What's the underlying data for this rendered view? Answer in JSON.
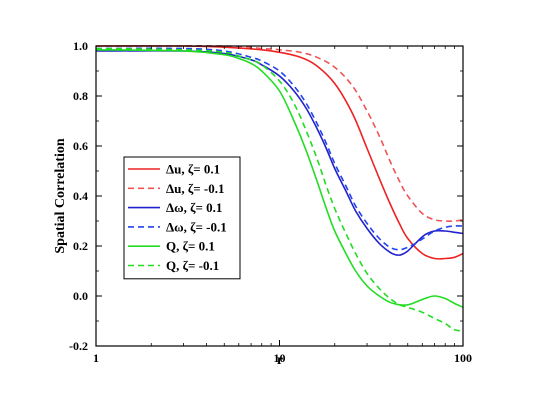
{
  "chart_data": {
    "type": "line",
    "xlabel": "r",
    "ylabel": "Spatial Correlation",
    "xscale": "log",
    "xlim": [
      1,
      100
    ],
    "ylim": [
      -0.2,
      1.0
    ],
    "x_ticks": [
      {
        "value": 1,
        "label": "1"
      },
      {
        "value": 10,
        "label": "10"
      },
      {
        "value": 100,
        "label": "100"
      }
    ],
    "y_ticks": [
      {
        "value": -0.2,
        "label": "-0.2"
      },
      {
        "value": 0.0,
        "label": "0.0"
      },
      {
        "value": 0.2,
        "label": "0.2"
      },
      {
        "value": 0.4,
        "label": "0.4"
      },
      {
        "value": 0.6,
        "label": "0.6"
      },
      {
        "value": 0.8,
        "label": "0.8"
      },
      {
        "value": 1.0,
        "label": "1.0"
      }
    ],
    "grid": false,
    "legend_position": "center-left",
    "series": [
      {
        "name": "Δu, ζ= 0.1",
        "color": "#ee2222",
        "dash": "solid",
        "points": [
          [
            1,
            1.0
          ],
          [
            3,
            1.0
          ],
          [
            5,
            0.995
          ],
          [
            8,
            0.985
          ],
          [
            10,
            0.975
          ],
          [
            13,
            0.955
          ],
          [
            16,
            0.92
          ],
          [
            20,
            0.85
          ],
          [
            25,
            0.73
          ],
          [
            30,
            0.59
          ],
          [
            35,
            0.47
          ],
          [
            40,
            0.37
          ],
          [
            45,
            0.29
          ],
          [
            50,
            0.23
          ],
          [
            60,
            0.17
          ],
          [
            70,
            0.15
          ],
          [
            80,
            0.15
          ],
          [
            90,
            0.155
          ],
          [
            100,
            0.17
          ]
        ]
      },
      {
        "name": "Δu, ζ= -0.1",
        "color": "#ee5555",
        "dash": "dashed",
        "points": [
          [
            1,
            1.0
          ],
          [
            5,
            1.0
          ],
          [
            8,
            0.99
          ],
          [
            10,
            0.985
          ],
          [
            13,
            0.975
          ],
          [
            16,
            0.955
          ],
          [
            20,
            0.915
          ],
          [
            25,
            0.84
          ],
          [
            30,
            0.74
          ],
          [
            35,
            0.64
          ],
          [
            40,
            0.54
          ],
          [
            45,
            0.46
          ],
          [
            50,
            0.4
          ],
          [
            60,
            0.33
          ],
          [
            70,
            0.305
          ],
          [
            80,
            0.3
          ],
          [
            90,
            0.3
          ],
          [
            100,
            0.305
          ]
        ]
      },
      {
        "name": "Δω, ζ= 0.1",
        "color": "#2222cc",
        "dash": "solid",
        "points": [
          [
            1,
            0.98
          ],
          [
            3,
            0.98
          ],
          [
            5,
            0.97
          ],
          [
            7,
            0.945
          ],
          [
            8,
            0.925
          ],
          [
            10,
            0.88
          ],
          [
            12,
            0.82
          ],
          [
            14,
            0.75
          ],
          [
            16,
            0.67
          ],
          [
            18,
            0.59
          ],
          [
            20,
            0.51
          ],
          [
            23,
            0.42
          ],
          [
            26,
            0.34
          ],
          [
            30,
            0.27
          ],
          [
            35,
            0.21
          ],
          [
            40,
            0.175
          ],
          [
            43,
            0.165
          ],
          [
            46,
            0.165
          ],
          [
            50,
            0.18
          ],
          [
            55,
            0.21
          ],
          [
            62,
            0.245
          ],
          [
            70,
            0.26
          ],
          [
            80,
            0.26
          ],
          [
            90,
            0.255
          ],
          [
            100,
            0.25
          ]
        ]
      },
      {
        "name": "Δω, ζ= -0.1",
        "color": "#2244ee",
        "dash": "dashed",
        "points": [
          [
            1,
            0.99
          ],
          [
            3,
            0.99
          ],
          [
            5,
            0.98
          ],
          [
            7,
            0.955
          ],
          [
            8,
            0.94
          ],
          [
            10,
            0.9
          ],
          [
            12,
            0.84
          ],
          [
            14,
            0.77
          ],
          [
            16,
            0.69
          ],
          [
            18,
            0.61
          ],
          [
            20,
            0.53
          ],
          [
            23,
            0.44
          ],
          [
            26,
            0.36
          ],
          [
            30,
            0.29
          ],
          [
            35,
            0.23
          ],
          [
            40,
            0.195
          ],
          [
            45,
            0.185
          ],
          [
            50,
            0.195
          ],
          [
            55,
            0.21
          ],
          [
            62,
            0.235
          ],
          [
            70,
            0.26
          ],
          [
            80,
            0.275
          ],
          [
            90,
            0.28
          ],
          [
            100,
            0.28
          ]
        ]
      },
      {
        "name": "Q, ζ= 0.1",
        "color": "#22dd22",
        "dash": "solid",
        "points": [
          [
            1,
            0.985
          ],
          [
            3,
            0.98
          ],
          [
            5,
            0.965
          ],
          [
            6,
            0.95
          ],
          [
            7,
            0.93
          ],
          [
            8,
            0.9
          ],
          [
            10,
            0.82
          ],
          [
            12,
            0.7
          ],
          [
            14,
            0.58
          ],
          [
            16,
            0.46
          ],
          [
            18,
            0.35
          ],
          [
            20,
            0.26
          ],
          [
            23,
            0.17
          ],
          [
            26,
            0.1
          ],
          [
            30,
            0.04
          ],
          [
            35,
            0.0
          ],
          [
            40,
            -0.025
          ],
          [
            45,
            -0.035
          ],
          [
            50,
            -0.035
          ],
          [
            55,
            -0.025
          ],
          [
            62,
            -0.01
          ],
          [
            70,
            0.0
          ],
          [
            80,
            -0.01
          ],
          [
            90,
            -0.03
          ],
          [
            100,
            -0.045
          ]
        ]
      },
      {
        "name": "Q, ζ= -0.1",
        "color": "#22dd22",
        "dash": "dashed",
        "points": [
          [
            1,
            0.99
          ],
          [
            3,
            0.985
          ],
          [
            5,
            0.975
          ],
          [
            6,
            0.96
          ],
          [
            7,
            0.945
          ],
          [
            8,
            0.925
          ],
          [
            10,
            0.86
          ],
          [
            12,
            0.77
          ],
          [
            14,
            0.66
          ],
          [
            16,
            0.55
          ],
          [
            18,
            0.44
          ],
          [
            20,
            0.35
          ],
          [
            23,
            0.25
          ],
          [
            26,
            0.17
          ],
          [
            30,
            0.09
          ],
          [
            35,
            0.03
          ],
          [
            40,
            -0.01
          ],
          [
            45,
            -0.035
          ],
          [
            50,
            -0.045
          ],
          [
            60,
            -0.065
          ],
          [
            70,
            -0.09
          ],
          [
            80,
            -0.11
          ],
          [
            90,
            -0.135
          ],
          [
            100,
            -0.14
          ]
        ]
      }
    ]
  }
}
